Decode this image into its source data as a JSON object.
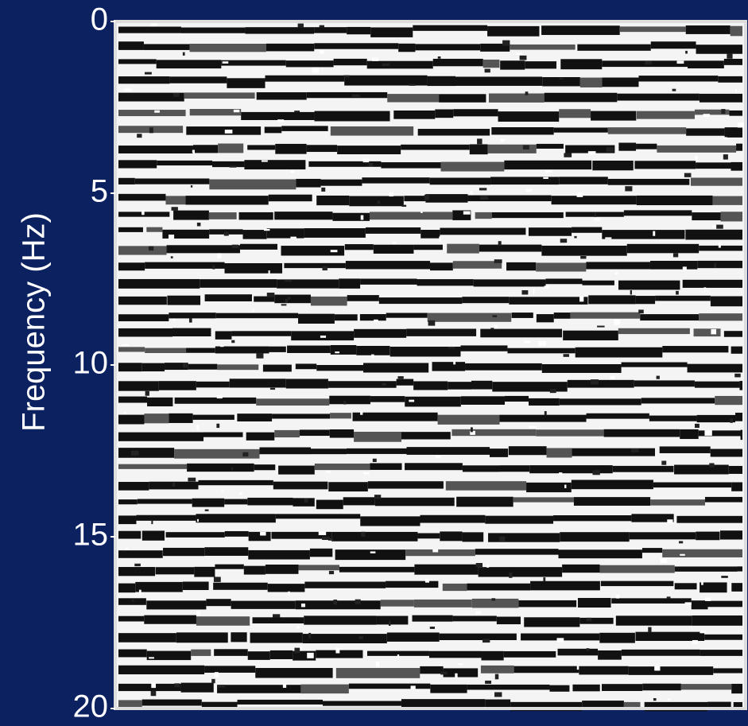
{
  "chart_data": {
    "type": "image",
    "y_label": "Frequency (Hz)",
    "ylim": [
      0,
      20
    ],
    "yticks": [
      0,
      5,
      10,
      15,
      20
    ],
    "y_inverted": true
  }
}
